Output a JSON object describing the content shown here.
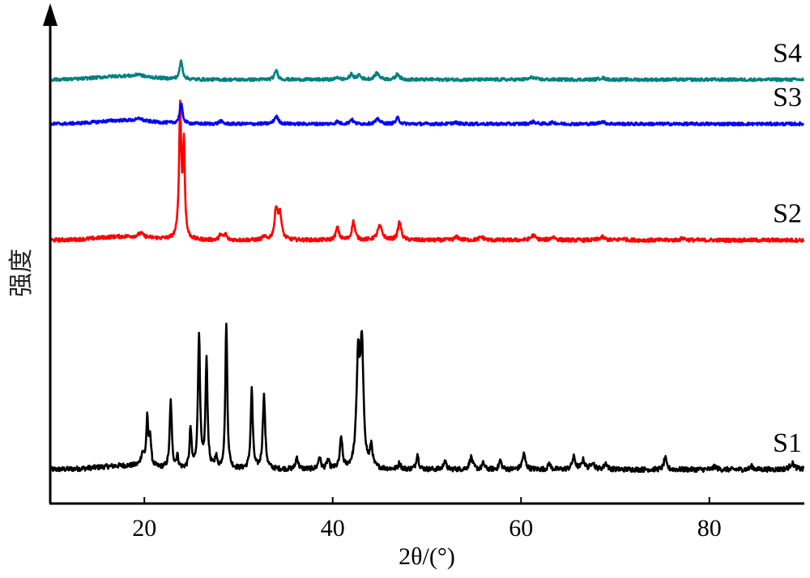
{
  "chart_data": {
    "type": "line",
    "title": "",
    "xlabel": "2θ/(°)",
    "ylabel": "强度",
    "xlim": [
      10,
      90
    ],
    "x_ticks": [
      20,
      40,
      60,
      80
    ],
    "y_ticks": [],
    "grid": false,
    "legend": "none",
    "series": [
      {
        "name": "S1",
        "color": "#000000",
        "baseline": 0.0,
        "noise": 0.008,
        "peaks": [
          [
            19.8,
            0.04,
            0.2
          ],
          [
            20.3,
            0.15,
            0.12
          ],
          [
            20.6,
            0.1,
            0.12
          ],
          [
            22.8,
            0.22,
            0.13
          ],
          [
            23.5,
            0.04,
            0.12
          ],
          [
            24.9,
            0.13,
            0.12
          ],
          [
            25.8,
            0.44,
            0.13
          ],
          [
            26.6,
            0.35,
            0.13
          ],
          [
            27.6,
            0.04,
            0.12
          ],
          [
            28.7,
            0.48,
            0.12
          ],
          [
            31.4,
            0.26,
            0.13
          ],
          [
            32.7,
            0.24,
            0.15
          ],
          [
            36.2,
            0.04,
            0.15
          ],
          [
            38.6,
            0.04,
            0.15
          ],
          [
            39.5,
            0.03,
            0.15
          ],
          [
            40.9,
            0.1,
            0.15
          ],
          [
            42.7,
            0.35,
            0.2
          ],
          [
            43.1,
            0.38,
            0.2
          ],
          [
            44.1,
            0.07,
            0.15
          ],
          [
            47.1,
            0.02,
            0.15
          ],
          [
            49.0,
            0.05,
            0.15
          ],
          [
            51.9,
            0.03,
            0.15
          ],
          [
            54.7,
            0.04,
            0.2
          ],
          [
            56.0,
            0.02,
            0.15
          ],
          [
            57.8,
            0.03,
            0.15
          ],
          [
            60.3,
            0.05,
            0.2
          ],
          [
            63.0,
            0.02,
            0.15
          ],
          [
            65.6,
            0.04,
            0.2
          ],
          [
            66.6,
            0.03,
            0.2
          ],
          [
            67.6,
            0.025,
            0.2
          ],
          [
            69.0,
            0.02,
            0.2
          ],
          [
            75.3,
            0.04,
            0.15
          ],
          [
            80.6,
            0.01,
            0.2
          ],
          [
            84.5,
            0.01,
            0.2
          ],
          [
            88.8,
            0.02,
            0.3
          ]
        ]
      },
      {
        "name": "S2",
        "color": "#ff0000",
        "baseline": 0.75,
        "noise": 0.006,
        "peaks": [
          [
            19.6,
            0.012,
            0.3
          ],
          [
            23.8,
            0.43,
            0.14
          ],
          [
            24.2,
            0.3,
            0.12
          ],
          [
            28.1,
            0.02,
            0.15
          ],
          [
            28.6,
            0.02,
            0.15
          ],
          [
            32.7,
            0.01,
            0.2
          ],
          [
            34.0,
            0.1,
            0.2
          ],
          [
            34.4,
            0.08,
            0.2
          ],
          [
            40.5,
            0.04,
            0.2
          ],
          [
            42.2,
            0.06,
            0.2
          ],
          [
            45.0,
            0.045,
            0.3
          ],
          [
            47.1,
            0.06,
            0.2
          ],
          [
            53.2,
            0.01,
            0.3
          ],
          [
            55.8,
            0.01,
            0.3
          ],
          [
            61.3,
            0.015,
            0.3
          ],
          [
            63.4,
            0.01,
            0.3
          ],
          [
            68.6,
            0.01,
            0.3
          ],
          [
            70.8,
            0.005,
            0.3
          ],
          [
            77.2,
            0.006,
            0.3
          ]
        ]
      },
      {
        "name": "S3",
        "color": "#0000ff",
        "baseline": 1.13,
        "noise": 0.005,
        "peaks": [
          [
            19.5,
            0.008,
            0.3
          ],
          [
            23.9,
            0.065,
            0.18
          ],
          [
            28.1,
            0.01,
            0.2
          ],
          [
            34.0,
            0.025,
            0.25
          ],
          [
            40.5,
            0.008,
            0.2
          ],
          [
            42.0,
            0.015,
            0.2
          ],
          [
            44.8,
            0.015,
            0.3
          ],
          [
            46.9,
            0.02,
            0.2
          ],
          [
            53.0,
            0.005,
            0.3
          ],
          [
            61.3,
            0.007,
            0.3
          ],
          [
            63.4,
            0.005,
            0.3
          ],
          [
            68.6,
            0.008,
            0.3
          ]
        ]
      },
      {
        "name": "S4",
        "color": "#008080",
        "baseline": 1.275,
        "noise": 0.005,
        "peaks": [
          [
            19.4,
            0.008,
            0.3
          ],
          [
            23.9,
            0.06,
            0.18
          ],
          [
            34.0,
            0.03,
            0.2
          ],
          [
            40.5,
            0.008,
            0.2
          ],
          [
            42.0,
            0.018,
            0.2
          ],
          [
            42.8,
            0.015,
            0.2
          ],
          [
            44.7,
            0.02,
            0.3
          ],
          [
            46.9,
            0.02,
            0.2
          ],
          [
            61.2,
            0.008,
            0.3
          ],
          [
            68.6,
            0.006,
            0.3
          ]
        ]
      }
    ]
  }
}
